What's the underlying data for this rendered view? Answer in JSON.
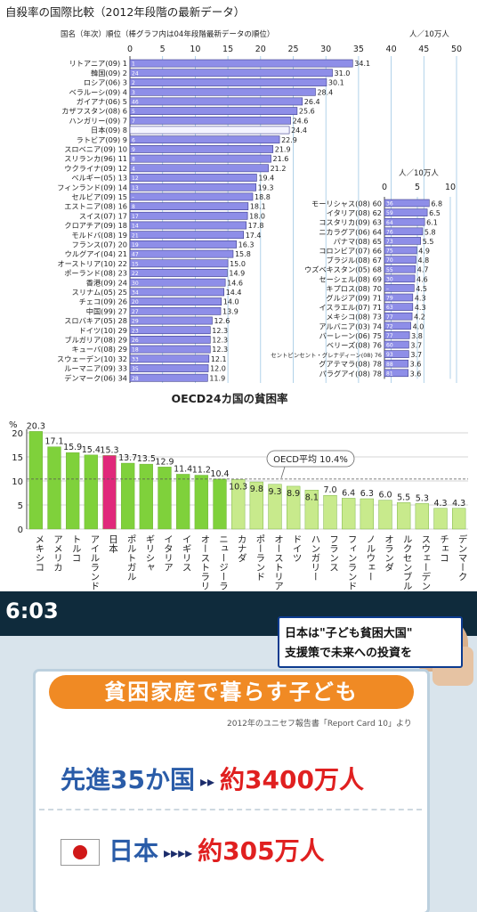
{
  "chart_data": [
    {
      "type": "bar",
      "title": "自殺率の国際比較（2012年段階の最新データ）",
      "header_left": "国名（年次）順位（棒グラフ内は04年段階最新データの順位）",
      "unit": "人／10万人",
      "xlim": [
        0,
        50
      ],
      "ticks": [
        "0",
        "5",
        "10",
        "15",
        "20",
        "25",
        "30",
        "35",
        "40",
        "45",
        "50"
      ],
      "grid": true,
      "bar_color": "#8e8ee8",
      "rows": [
        {
          "label": "リトアニア(09) 1",
          "rank04": "1",
          "value": 34.1
        },
        {
          "label": "韓国(09) 2",
          "rank04": "24",
          "value": 31.0
        },
        {
          "label": "ロシア(06) 3",
          "rank04": "2",
          "value": 30.1
        },
        {
          "label": "ベラルーシ(09) 4",
          "rank04": "3",
          "value": 28.4
        },
        {
          "label": "ガイアナ(06) 5",
          "rank04": "46",
          "value": 26.4
        },
        {
          "label": "カザフスタン(08) 6",
          "rank04": "5",
          "value": 25.6
        },
        {
          "label": "ハンガリー(09) 7",
          "rank04": "7",
          "value": 24.6
        },
        {
          "label": "日本(09) 8",
          "rank04": "10",
          "value": 24.4,
          "highlight": true
        },
        {
          "label": "ラトビア(09) 9",
          "rank04": "6",
          "value": 22.9
        },
        {
          "label": "スロベニア(09) 10",
          "rank04": "9",
          "value": 21.9
        },
        {
          "label": "スリランカ(96) 11",
          "rank04": "8",
          "value": 21.6
        },
        {
          "label": "ウクライナ(09) 12",
          "rank04": "4",
          "value": 21.2
        },
        {
          "label": "ベルギー(05) 13",
          "rank04": "12",
          "value": 19.4
        },
        {
          "label": "フィンランド(09) 14",
          "rank04": "13",
          "value": 19.3
        },
        {
          "label": "セルビア(09) 15",
          "rank04": "–",
          "value": 18.8
        },
        {
          "label": "エストニア(08) 16",
          "rank04": "8",
          "value": 18.1
        },
        {
          "label": "スイス(07) 17",
          "rank04": "17",
          "value": 18.0
        },
        {
          "label": "クロアチア(09) 18",
          "rank04": "14",
          "value": 17.8
        },
        {
          "label": "モルドバ(08) 19",
          "rank04": "21",
          "value": 17.4
        },
        {
          "label": "フランス(07) 20",
          "rank04": "19",
          "value": 16.3
        },
        {
          "label": "ウルグアイ(04) 21",
          "rank04": "47",
          "value": 15.8
        },
        {
          "label": "オーストリア(10) 22",
          "rank04": "15",
          "value": 15.0
        },
        {
          "label": "ポーランド(08) 23",
          "rank04": "22",
          "value": 14.9
        },
        {
          "label": "香港(09) 24",
          "rank04": "30",
          "value": 14.6
        },
        {
          "label": "スリナム(05) 25",
          "rank04": "34",
          "value": 14.4
        },
        {
          "label": "チェコ(09) 26",
          "rank04": "20",
          "value": 14.0
        },
        {
          "label": "中国(99) 27",
          "rank04": "27",
          "value": 13.9
        },
        {
          "label": "スロバキア(05) 28",
          "rank04": "29",
          "value": 12.6
        },
        {
          "label": "ドイツ(10) 29",
          "rank04": "23",
          "value": 12.3
        },
        {
          "label": "ブルガリア(08) 29",
          "rank04": "26",
          "value": 12.3
        },
        {
          "label": "キューバ(08) 29",
          "rank04": "18",
          "value": 12.3
        },
        {
          "label": "スウェーデン(10) 32",
          "rank04": "33",
          "value": 12.1
        },
        {
          "label": "ルーマニア(09) 33",
          "rank04": "35",
          "value": 12.0
        },
        {
          "label": "デンマーク(06) 34",
          "rank04": "28",
          "value": 11.9
        }
      ],
      "inset": {
        "unit": "人／10万人",
        "xlim": [
          0,
          10
        ],
        "ticks": [
          "0",
          "5",
          "10"
        ],
        "rows": [
          {
            "label": "モーリシャス(08) 60",
            "rank04": "36",
            "value": 6.8
          },
          {
            "label": "イタリア(08) 62",
            "rank04": "59",
            "value": 6.5
          },
          {
            "label": "コスタリカ(09) 63",
            "rank04": "64",
            "value": 6.1
          },
          {
            "label": "ニカラグア(06) 64",
            "rank04": "76",
            "value": 5.8
          },
          {
            "label": "パナマ(08) 65",
            "rank04": "73",
            "value": 5.5
          },
          {
            "label": "コロンビア(07) 66",
            "rank04": "75",
            "value": 4.9
          },
          {
            "label": "ブラジル(08) 67",
            "rank04": "70",
            "value": 4.8
          },
          {
            "label": "ウズベキスタン(05) 68",
            "rank04": "55",
            "value": 4.7
          },
          {
            "label": "セーシェル(08) 69",
            "rank04": "30",
            "value": 4.6
          },
          {
            "label": "キプロス(08) 70",
            "rank04": "–",
            "value": 4.5
          },
          {
            "label": "グルジア(09) 71",
            "rank04": "79",
            "value": 4.3
          },
          {
            "label": "イスラエル(07) 71",
            "rank04": "63",
            "value": 4.3
          },
          {
            "label": "メキシコ(08) 73",
            "rank04": "77",
            "value": 4.2
          },
          {
            "label": "アルバニア(03) 74",
            "rank04": "72",
            "value": 4.0
          },
          {
            "label": "バーレーン(06) 75",
            "rank04": "77",
            "value": 3.8
          },
          {
            "label": "ベリーズ(08) 76",
            "rank04": "60",
            "value": 3.7
          },
          {
            "label": "セントビンセント・グレナディーン(08) 76",
            "rank04": "93",
            "value": 3.7
          },
          {
            "label": "グアテマラ(08) 78",
            "rank04": "88",
            "value": 3.6
          },
          {
            "label": "パラグアイ(08) 78",
            "rank04": "81",
            "value": 3.6
          }
        ]
      }
    },
    {
      "type": "bar",
      "title": "OECD24カ国の貧困率",
      "ylabel": "%",
      "ylim": [
        0,
        20
      ],
      "yticks": [
        "0",
        "5",
        "10",
        "15",
        "20"
      ],
      "grid": true,
      "average_label": "OECD平均 10.4%",
      "average_value": 10.4,
      "colors": {
        "bar": "#7fd13b",
        "japan": "#e0287a",
        "light": "#c8ea8c"
      },
      "categories": [
        "メキシコ",
        "アメリカ",
        "トルコ",
        "アイルランド",
        "日本",
        "ポルトガル",
        "ギリシャ",
        "イタリア",
        "イギリス",
        "オーストラリア",
        "ニュージーランド",
        "カナダ",
        "ポーランド",
        "オーストリア",
        "ドイツ",
        "ハンガリー",
        "フランス",
        "フィンランド",
        "ノルウェー",
        "オランダ",
        "ルクセンブルク",
        "スウェーデン",
        "チェコ",
        "デンマーク"
      ],
      "values": [
        20.3,
        17.1,
        15.9,
        15.4,
        15.3,
        13.7,
        13.5,
        12.9,
        11.4,
        11.2,
        10.4,
        10.3,
        9.8,
        9.3,
        8.9,
        8.1,
        7.0,
        6.4,
        6.3,
        6.0,
        5.5,
        5.3,
        4.3,
        4.3
      ]
    }
  ],
  "tv": {
    "clock": "6:03",
    "caption_line1": "日本は\"子ども貧困大国\"",
    "caption_line2": "支援策で未来への投資を",
    "board_title": "貧困家庭で暮らす子ども",
    "source": "2012年のユニセフ報告書「Report Card 10」より",
    "row1_label": "先進35か国",
    "row1_arrow": "▸▸",
    "row1_value": "約3400万人",
    "row2_label": "日本",
    "row2_arrow": "▸▸▸▸",
    "row2_value": "約305万人",
    "icons": [
      "japan-flag-icon"
    ]
  }
}
